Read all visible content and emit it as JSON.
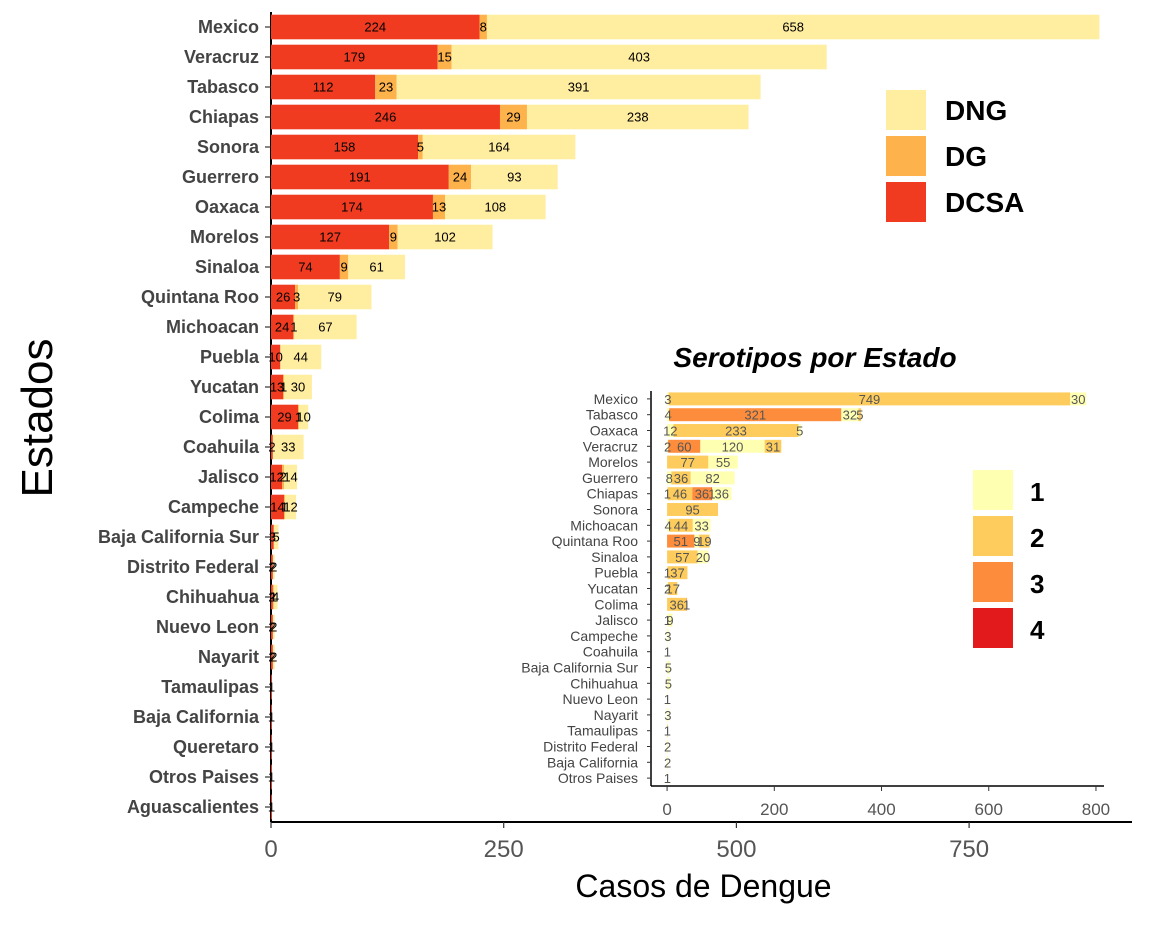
{
  "chart_data": [
    {
      "type": "bar",
      "orientation": "horizontal",
      "stacked": true,
      "xlabel": "Casos de Dengue",
      "ylabel": "Estados",
      "xlim": [
        0,
        925
      ],
      "xticks": [
        0,
        250,
        500,
        750
      ],
      "categories": [
        "Mexico",
        "Veracruz",
        "Tabasco",
        "Chiapas",
        "Sonora",
        "Guerrero",
        "Oaxaca",
        "Morelos",
        "Sinaloa",
        "Quintana Roo",
        "Michoacan",
        "Puebla",
        "Yucatan",
        "Colima",
        "Coahuila",
        "Jalisco",
        "Campeche",
        "Baja California Sur",
        "Distrito Federal",
        "Chihuahua",
        "Nuevo Leon",
        "Nayarit",
        "Tamaulipas",
        "Baja California",
        "Queretaro",
        "Otros Paises",
        "Aguascalientes"
      ],
      "series": [
        {
          "name": "DCSA",
          "color": "#F03B20",
          "values": [
            224,
            179,
            112,
            246,
            158,
            191,
            174,
            127,
            74,
            26,
            24,
            10,
            13,
            29,
            2,
            12,
            14,
            3,
            2,
            2,
            2,
            2,
            1,
            1,
            1,
            1,
            1
          ]
        },
        {
          "name": "DG",
          "color": "#FEB24C",
          "values": [
            8,
            15,
            23,
            29,
            5,
            24,
            13,
            9,
            9,
            3,
            1,
            0,
            1,
            1,
            0,
            2,
            1,
            0,
            0,
            1,
            0,
            0,
            0,
            0,
            0,
            0,
            0
          ]
        },
        {
          "name": "DNG",
          "color": "#FFEDA0",
          "values": [
            658,
            403,
            391,
            238,
            164,
            93,
            108,
            102,
            61,
            79,
            67,
            44,
            30,
            10,
            33,
            14,
            12,
            5,
            2,
            4,
            2,
            2,
            0,
            0,
            0,
            0,
            0
          ]
        }
      ],
      "legend": {
        "position": "top-right",
        "entries": [
          "DNG",
          "DG",
          "DCSA"
        ]
      },
      "grid": false
    },
    {
      "type": "bar",
      "orientation": "horizontal",
      "stacked": true,
      "title": "Serotipos por Estado",
      "xlim": [
        -30,
        815
      ],
      "xticks": [
        0,
        200,
        400,
        600,
        800
      ],
      "categories": [
        "Mexico",
        "Tabasco",
        "Oaxaca",
        "Veracruz",
        "Morelos",
        "Guerrero",
        "Chiapas",
        "Sonora",
        "Michoacan",
        "Quintana Roo",
        "Sinaloa",
        "Puebla",
        "Yucatan",
        "Colima",
        "Jalisco",
        "Campeche",
        "Coahuila",
        "Baja California Sur",
        "Chihuahua",
        "Nuevo Leon",
        "Nayarit",
        "Tamaulipas",
        "Distrito Federal",
        "Baja California",
        "Otros Paises"
      ],
      "series": [
        {
          "name": "1",
          "color": "#FFFFB2",
          "values": [
            3,
            4,
            12,
            2,
            0,
            8,
            1,
            0,
            4,
            0,
            0,
            1,
            2,
            0,
            1,
            3,
            1,
            5,
            5,
            1,
            3,
            0,
            2,
            2,
            1
          ]
        },
        {
          "name": "2",
          "color": "#FECC5C",
          "values": [
            749,
            0,
            233,
            0,
            77,
            36,
            46,
            95,
            44,
            0,
            57,
            37,
            17,
            36,
            0,
            0,
            0,
            0,
            0,
            0,
            0,
            1,
            0,
            0,
            0
          ]
        },
        {
          "name": "3",
          "color": "#FD8D3C",
          "values": [
            0,
            321,
            0,
            60,
            0,
            0,
            36,
            0,
            0,
            51,
            0,
            0,
            0,
            1,
            0,
            0,
            0,
            0,
            0,
            0,
            0,
            0,
            0,
            0,
            0
          ]
        },
        {
          "name": "4",
          "color": "#E31A1C",
          "values": [
            0,
            0,
            0,
            0,
            0,
            0,
            1,
            0,
            0,
            0,
            0,
            0,
            0,
            0,
            0,
            0,
            0,
            0,
            0,
            0,
            0,
            0,
            0,
            0,
            0
          ]
        },
        {
          "name": "1b",
          "color": "#FFFFB2",
          "values": [
            30,
            32,
            5,
            120,
            55,
            82,
            36,
            0,
            33,
            9,
            20,
            0,
            0,
            0,
            9,
            0,
            0,
            0,
            0,
            0,
            0,
            0,
            0,
            0,
            0
          ]
        },
        {
          "name": "2b",
          "color": "#FECC5C",
          "values": [
            0,
            5,
            0,
            31,
            0,
            0,
            0,
            0,
            0,
            19,
            0,
            0,
            0,
            0,
            0,
            0,
            0,
            0,
            0,
            0,
            0,
            0,
            0,
            0,
            0
          ]
        }
      ],
      "legend": {
        "position": "right",
        "entries": [
          "1",
          "2",
          "3",
          "4"
        ]
      },
      "grid": false
    }
  ]
}
